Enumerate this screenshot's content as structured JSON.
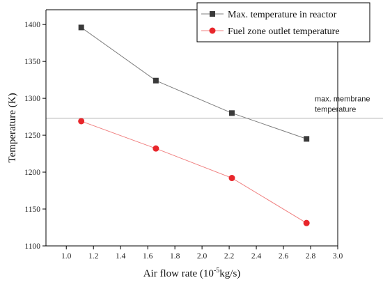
{
  "chart_data": {
    "type": "line",
    "xlabel_main": "Air flow rate (10",
    "xlabel_sup": "-5",
    "xlabel_rest": "kg/s)",
    "ylabel": "Temperature (K)",
    "xlim": [
      0.85,
      3.0
    ],
    "ylim": [
      1100,
      1420
    ],
    "xticks": [
      "1.0",
      "1.2",
      "1.4",
      "1.6",
      "1.8",
      "2.0",
      "2.2",
      "2.4",
      "2.6",
      "2.8",
      "3.0"
    ],
    "yticks": [
      "1100",
      "1150",
      "1200",
      "1250",
      "1300",
      "1350",
      "1400"
    ],
    "series": [
      {
        "name": "Max. temperature in reactor",
        "color": "#7f7f7f",
        "marker_color": "#3a3a3a",
        "marker": "square",
        "x": [
          1.11,
          1.66,
          2.22,
          2.77
        ],
        "y": [
          1396,
          1324,
          1280,
          1245
        ]
      },
      {
        "name": "Fuel zone outlet temperature",
        "color": "#f08080",
        "marker_color": "#e8262b",
        "marker": "circle",
        "x": [
          1.11,
          1.66,
          2.22,
          2.77
        ],
        "y": [
          1269,
          1232,
          1192,
          1131
        ]
      }
    ],
    "reference_line": {
      "y": 1273,
      "label_line1": "max. membrane",
      "label_line2": "temperature",
      "color": "#b0b0b0"
    },
    "legend_position": "top-right",
    "grid": false
  }
}
